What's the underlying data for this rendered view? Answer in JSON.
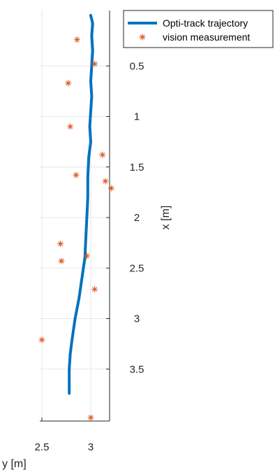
{
  "chart_data": {
    "type": "scatter",
    "axes": {
      "horizontal": {
        "quantity": "y",
        "label": "y [m]",
        "range": [
          2.5,
          3.2
        ],
        "ticks": [
          "2.5",
          "3"
        ],
        "tick_values": [
          2.5,
          3.0
        ],
        "grid": true
      },
      "vertical": {
        "quantity": "x",
        "label": "x [m]",
        "range": [
          0.0,
          4.0
        ],
        "direction": "increasing-downward",
        "ticks": [
          "0.5",
          "1",
          "1.5",
          "2",
          "2.5",
          "3",
          "3.5"
        ],
        "tick_values": [
          0.5,
          1.0,
          1.5,
          2.0,
          2.5,
          3.0,
          3.5
        ],
        "grid": true
      }
    },
    "legend": {
      "placement": "top-right"
    },
    "series": [
      {
        "name": "Opti-track trajectory",
        "kind": "line",
        "color": "#0072BD",
        "points": [
          {
            "y": 3.0,
            "x": 0.0
          },
          {
            "y": 3.02,
            "x": 0.08
          },
          {
            "y": 3.01,
            "x": 0.2
          },
          {
            "y": 3.02,
            "x": 0.35
          },
          {
            "y": 3.01,
            "x": 0.5
          },
          {
            "y": 3.0,
            "x": 0.65
          },
          {
            "y": 3.01,
            "x": 0.8
          },
          {
            "y": 3.0,
            "x": 0.95
          },
          {
            "y": 2.99,
            "x": 1.1
          },
          {
            "y": 3.0,
            "x": 1.25
          },
          {
            "y": 2.98,
            "x": 1.4
          },
          {
            "y": 2.97,
            "x": 1.6
          },
          {
            "y": 2.97,
            "x": 1.8
          },
          {
            "y": 2.96,
            "x": 2.0
          },
          {
            "y": 2.95,
            "x": 2.2
          },
          {
            "y": 2.94,
            "x": 2.4
          },
          {
            "y": 2.91,
            "x": 2.6
          },
          {
            "y": 2.88,
            "x": 2.8
          },
          {
            "y": 2.84,
            "x": 3.0
          },
          {
            "y": 2.81,
            "x": 3.2
          },
          {
            "y": 2.79,
            "x": 3.35
          },
          {
            "y": 2.78,
            "x": 3.5
          },
          {
            "y": 2.78,
            "x": 3.65
          },
          {
            "y": 2.78,
            "x": 3.74
          }
        ]
      },
      {
        "name": "vision measurement",
        "kind": "marker",
        "marker": "asterisk",
        "color": "#D95319",
        "points": [
          {
            "y": 2.86,
            "x": 0.24
          },
          {
            "y": 3.04,
            "x": 0.48
          },
          {
            "y": 2.77,
            "x": 0.67
          },
          {
            "y": 2.79,
            "x": 1.1
          },
          {
            "y": 3.12,
            "x": 1.38
          },
          {
            "y": 2.85,
            "x": 1.58
          },
          {
            "y": 3.15,
            "x": 1.64
          },
          {
            "y": 3.21,
            "x": 1.71
          },
          {
            "y": 2.69,
            "x": 2.26
          },
          {
            "y": 2.7,
            "x": 2.43
          },
          {
            "y": 2.96,
            "x": 2.38
          },
          {
            "y": 3.04,
            "x": 2.71
          },
          {
            "y": 2.5,
            "x": 3.21
          },
          {
            "y": 3.0,
            "x": 3.98
          }
        ]
      }
    ]
  }
}
